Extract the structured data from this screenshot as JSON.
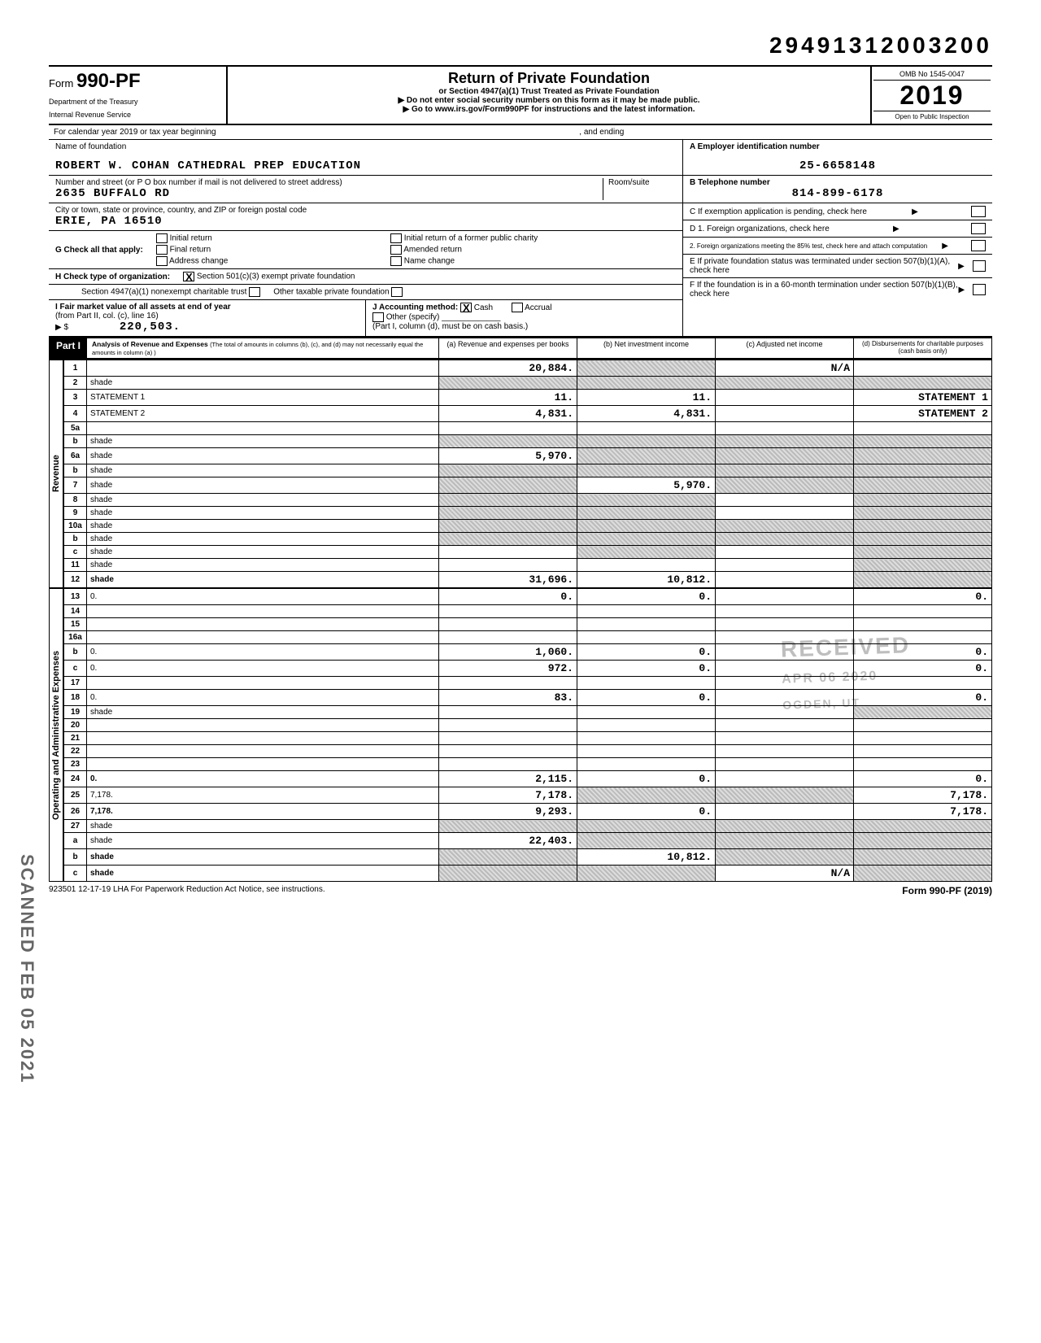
{
  "doc_number": "29491312003200",
  "form": {
    "prefix": "Form",
    "number": "990-PF",
    "dept1": "Department of the Treasury",
    "dept2": "Internal Revenue Service"
  },
  "title": {
    "main": "Return of Private Foundation",
    "sub1": "or Section 4947(a)(1) Trust Treated as Private Foundation",
    "sub2": "Do not enter social security numbers on this form as it may be made public.",
    "sub3": "Go to www.irs.gov/Form990PF for instructions and the latest information."
  },
  "yearbox": {
    "omb": "OMB No 1545-0047",
    "year": "2019",
    "open": "Open to Public Inspection"
  },
  "calendar_line": "For calendar year 2019 or tax year beginning",
  "calendar_line_mid": ", and ending",
  "foundation": {
    "name_label": "Name of foundation",
    "name": "ROBERT W. COHAN CATHEDRAL PREP EDUCATION",
    "addr_label": "Number and street (or P O box number if mail is not delivered to street address)",
    "addr": "2635 BUFFALO RD",
    "room_label": "Room/suite",
    "city_label": "City or town, state or province, country, and ZIP or foreign postal code",
    "city": "ERIE, PA  16510"
  },
  "right_info": {
    "A_label": "A Employer identification number",
    "A_val": "25-6658148",
    "B_label": "B Telephone number",
    "B_val": "814-899-6178",
    "C_label": "C  If exemption application is pending, check here",
    "D1": "D 1. Foreign organizations, check here",
    "D2": "2. Foreign organizations meeting the 85% test, check here and attach computation",
    "E": "E  If private foundation status was terminated under section 507(b)(1)(A), check here",
    "F": "F  If the foundation is in a 60-month termination under section 507(b)(1)(B), check here"
  },
  "G": {
    "label": "G  Check all that apply:",
    "opts": [
      "Initial return",
      "Final return",
      "Address change",
      "Initial return of a former public charity",
      "Amended return",
      "Name change"
    ]
  },
  "H": {
    "label": "H  Check type of organization:",
    "o1": "Section 501(c)(3) exempt private foundation",
    "o2": "Section 4947(a)(1) nonexempt charitable trust",
    "o3": "Other taxable private foundation"
  },
  "I": {
    "label": "I  Fair market value of all assets at end of year",
    "sub": "(from Part II, col. (c), line 16)",
    "arrow": "▶ $",
    "val": "220,503."
  },
  "J": {
    "label": "J  Accounting method:",
    "cash": "Cash",
    "accrual": "Accrual",
    "other": "Other (specify)",
    "note": "(Part I, column (d), must be on cash basis.)"
  },
  "part1_tag": "Part I",
  "part1_desc": "Analysis of Revenue and Expenses (The total of amounts in columns (b), (c), and (d) may not necessarily equal the amounts in column (a) )",
  "columns": {
    "a": "(a) Revenue and expenses per books",
    "b": "(b) Net investment income",
    "c": "(c) Adjusted net income",
    "d": "(d) Disbursements for charitable purposes (cash basis only)"
  },
  "side_rev": "Revenue",
  "side_exp": "Operating and Administrative Expenses",
  "lines": [
    {
      "n": "1",
      "d": "",
      "a": "20,884.",
      "b": "shade",
      "c": "N/A"
    },
    {
      "n": "2",
      "d": "shade",
      "a": "shade",
      "b": "shade",
      "c": "shade"
    },
    {
      "n": "3",
      "d": "STATEMENT 1",
      "a": "11.",
      "b": "11.",
      "c": ""
    },
    {
      "n": "4",
      "d": "STATEMENT 2",
      "a": "4,831.",
      "b": "4,831.",
      "c": ""
    },
    {
      "n": "5a",
      "d": "",
      "a": "",
      "b": "",
      "c": ""
    },
    {
      "n": "b",
      "d": "shade",
      "a": "shade",
      "b": "shade",
      "c": "shade"
    },
    {
      "n": "6a",
      "d": "shade",
      "a": "5,970.",
      "b": "shade",
      "c": "shade"
    },
    {
      "n": "b",
      "d": "shade",
      "a": "shade",
      "b": "shade",
      "c": "shade"
    },
    {
      "n": "7",
      "d": "shade",
      "a": "shade",
      "b": "5,970.",
      "c": "shade"
    },
    {
      "n": "8",
      "d": "shade",
      "a": "shade",
      "b": "shade",
      "c": ""
    },
    {
      "n": "9",
      "d": "shade",
      "a": "shade",
      "b": "shade",
      "c": ""
    },
    {
      "n": "10a",
      "d": "shade",
      "a": "shade",
      "b": "shade",
      "c": "shade"
    },
    {
      "n": "b",
      "d": "shade",
      "a": "shade",
      "b": "shade",
      "c": "shade"
    },
    {
      "n": "c",
      "d": "shade",
      "a": "",
      "b": "shade",
      "c": ""
    },
    {
      "n": "11",
      "d": "shade",
      "a": "",
      "b": "",
      "c": ""
    },
    {
      "n": "12",
      "d": "shade",
      "a": "31,696.",
      "b": "10,812.",
      "c": "",
      "bold": true
    }
  ],
  "exp_lines": [
    {
      "n": "13",
      "d": "0.",
      "a": "0.",
      "b": "0.",
      "c": ""
    },
    {
      "n": "14",
      "d": "",
      "a": "",
      "b": "",
      "c": ""
    },
    {
      "n": "15",
      "d": "",
      "a": "",
      "b": "",
      "c": ""
    },
    {
      "n": "16a",
      "d": "",
      "a": "",
      "b": "",
      "c": ""
    },
    {
      "n": "b",
      "d": "0.",
      "a": "1,060.",
      "b": "0.",
      "c": ""
    },
    {
      "n": "c",
      "d": "0.",
      "a": "972.",
      "b": "0.",
      "c": ""
    },
    {
      "n": "17",
      "d": "",
      "a": "",
      "b": "",
      "c": ""
    },
    {
      "n": "18",
      "d": "0.",
      "a": "83.",
      "b": "0.",
      "c": ""
    },
    {
      "n": "19",
      "d": "shade",
      "a": "",
      "b": "",
      "c": ""
    },
    {
      "n": "20",
      "d": "",
      "a": "",
      "b": "",
      "c": ""
    },
    {
      "n": "21",
      "d": "",
      "a": "",
      "b": "",
      "c": ""
    },
    {
      "n": "22",
      "d": "",
      "a": "",
      "b": "",
      "c": ""
    },
    {
      "n": "23",
      "d": "",
      "a": "",
      "b": "",
      "c": ""
    },
    {
      "n": "24",
      "d": "0.",
      "a": "2,115.",
      "b": "0.",
      "c": "",
      "bold": true
    },
    {
      "n": "25",
      "d": "7,178.",
      "a": "7,178.",
      "b": "shade",
      "c": "shade"
    },
    {
      "n": "26",
      "d": "7,178.",
      "a": "9,293.",
      "b": "0.",
      "c": "",
      "bold": true
    },
    {
      "n": "27",
      "d": "shade",
      "a": "shade",
      "b": "shade",
      "c": "shade"
    },
    {
      "n": "a",
      "d": "shade",
      "a": "22,403.",
      "b": "shade",
      "c": "shade"
    },
    {
      "n": "b",
      "d": "shade",
      "a": "shade",
      "b": "10,812.",
      "c": "shade",
      "bold": true
    },
    {
      "n": "c",
      "d": "shade",
      "a": "shade",
      "b": "shade",
      "c": "N/A",
      "bold": true
    }
  ],
  "footer": {
    "left": "923501 12-17-19    LHA  For Paperwork Reduction Act Notice, see instructions.",
    "right": "Form 990-PF (2019)"
  },
  "stamps": {
    "received": "RECEIVED",
    "date": "APR 06 2020",
    "ogden": "OGDEN, UT",
    "scanned": "SCANNED FEB 05 2021"
  }
}
